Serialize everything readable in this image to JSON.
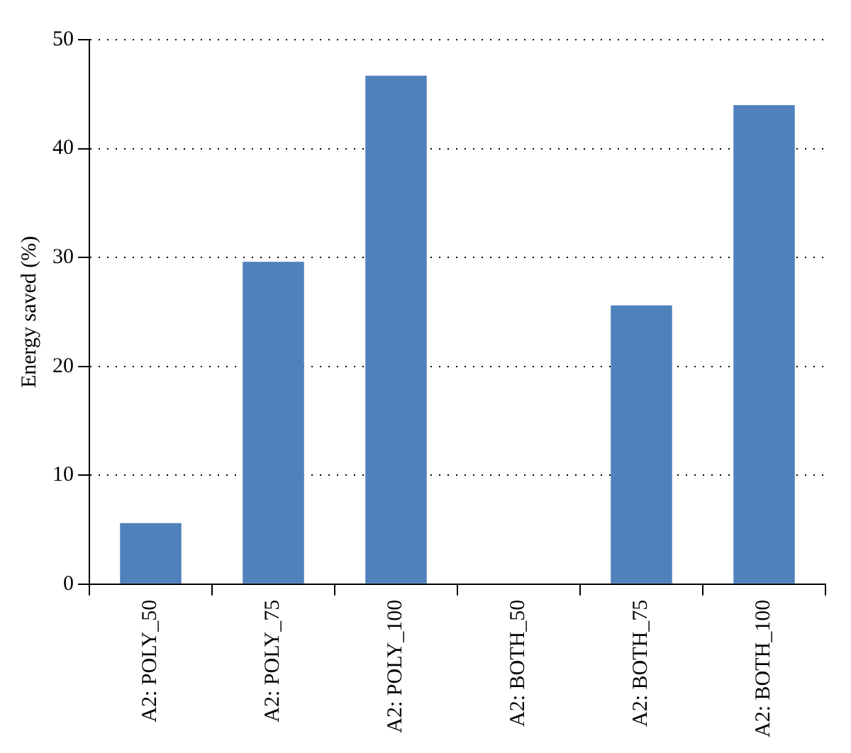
{
  "chart_data": {
    "type": "bar",
    "ylabel": "Energy saved (%)",
    "categories": [
      "A2: POLY_50",
      "A2: POLY_75",
      "A2: POLY_100",
      "A2: BOTH_50",
      "A2: BOTH_75",
      "A2: BOTH_100"
    ],
    "values": [
      5.6,
      29.6,
      46.7,
      0,
      25.6,
      44.0
    ],
    "color": "#4f81bd",
    "ylim": [
      0,
      50
    ],
    "yticks": [
      0,
      10,
      20,
      30,
      40,
      50
    ],
    "grid": "y",
    "legend": false
  }
}
